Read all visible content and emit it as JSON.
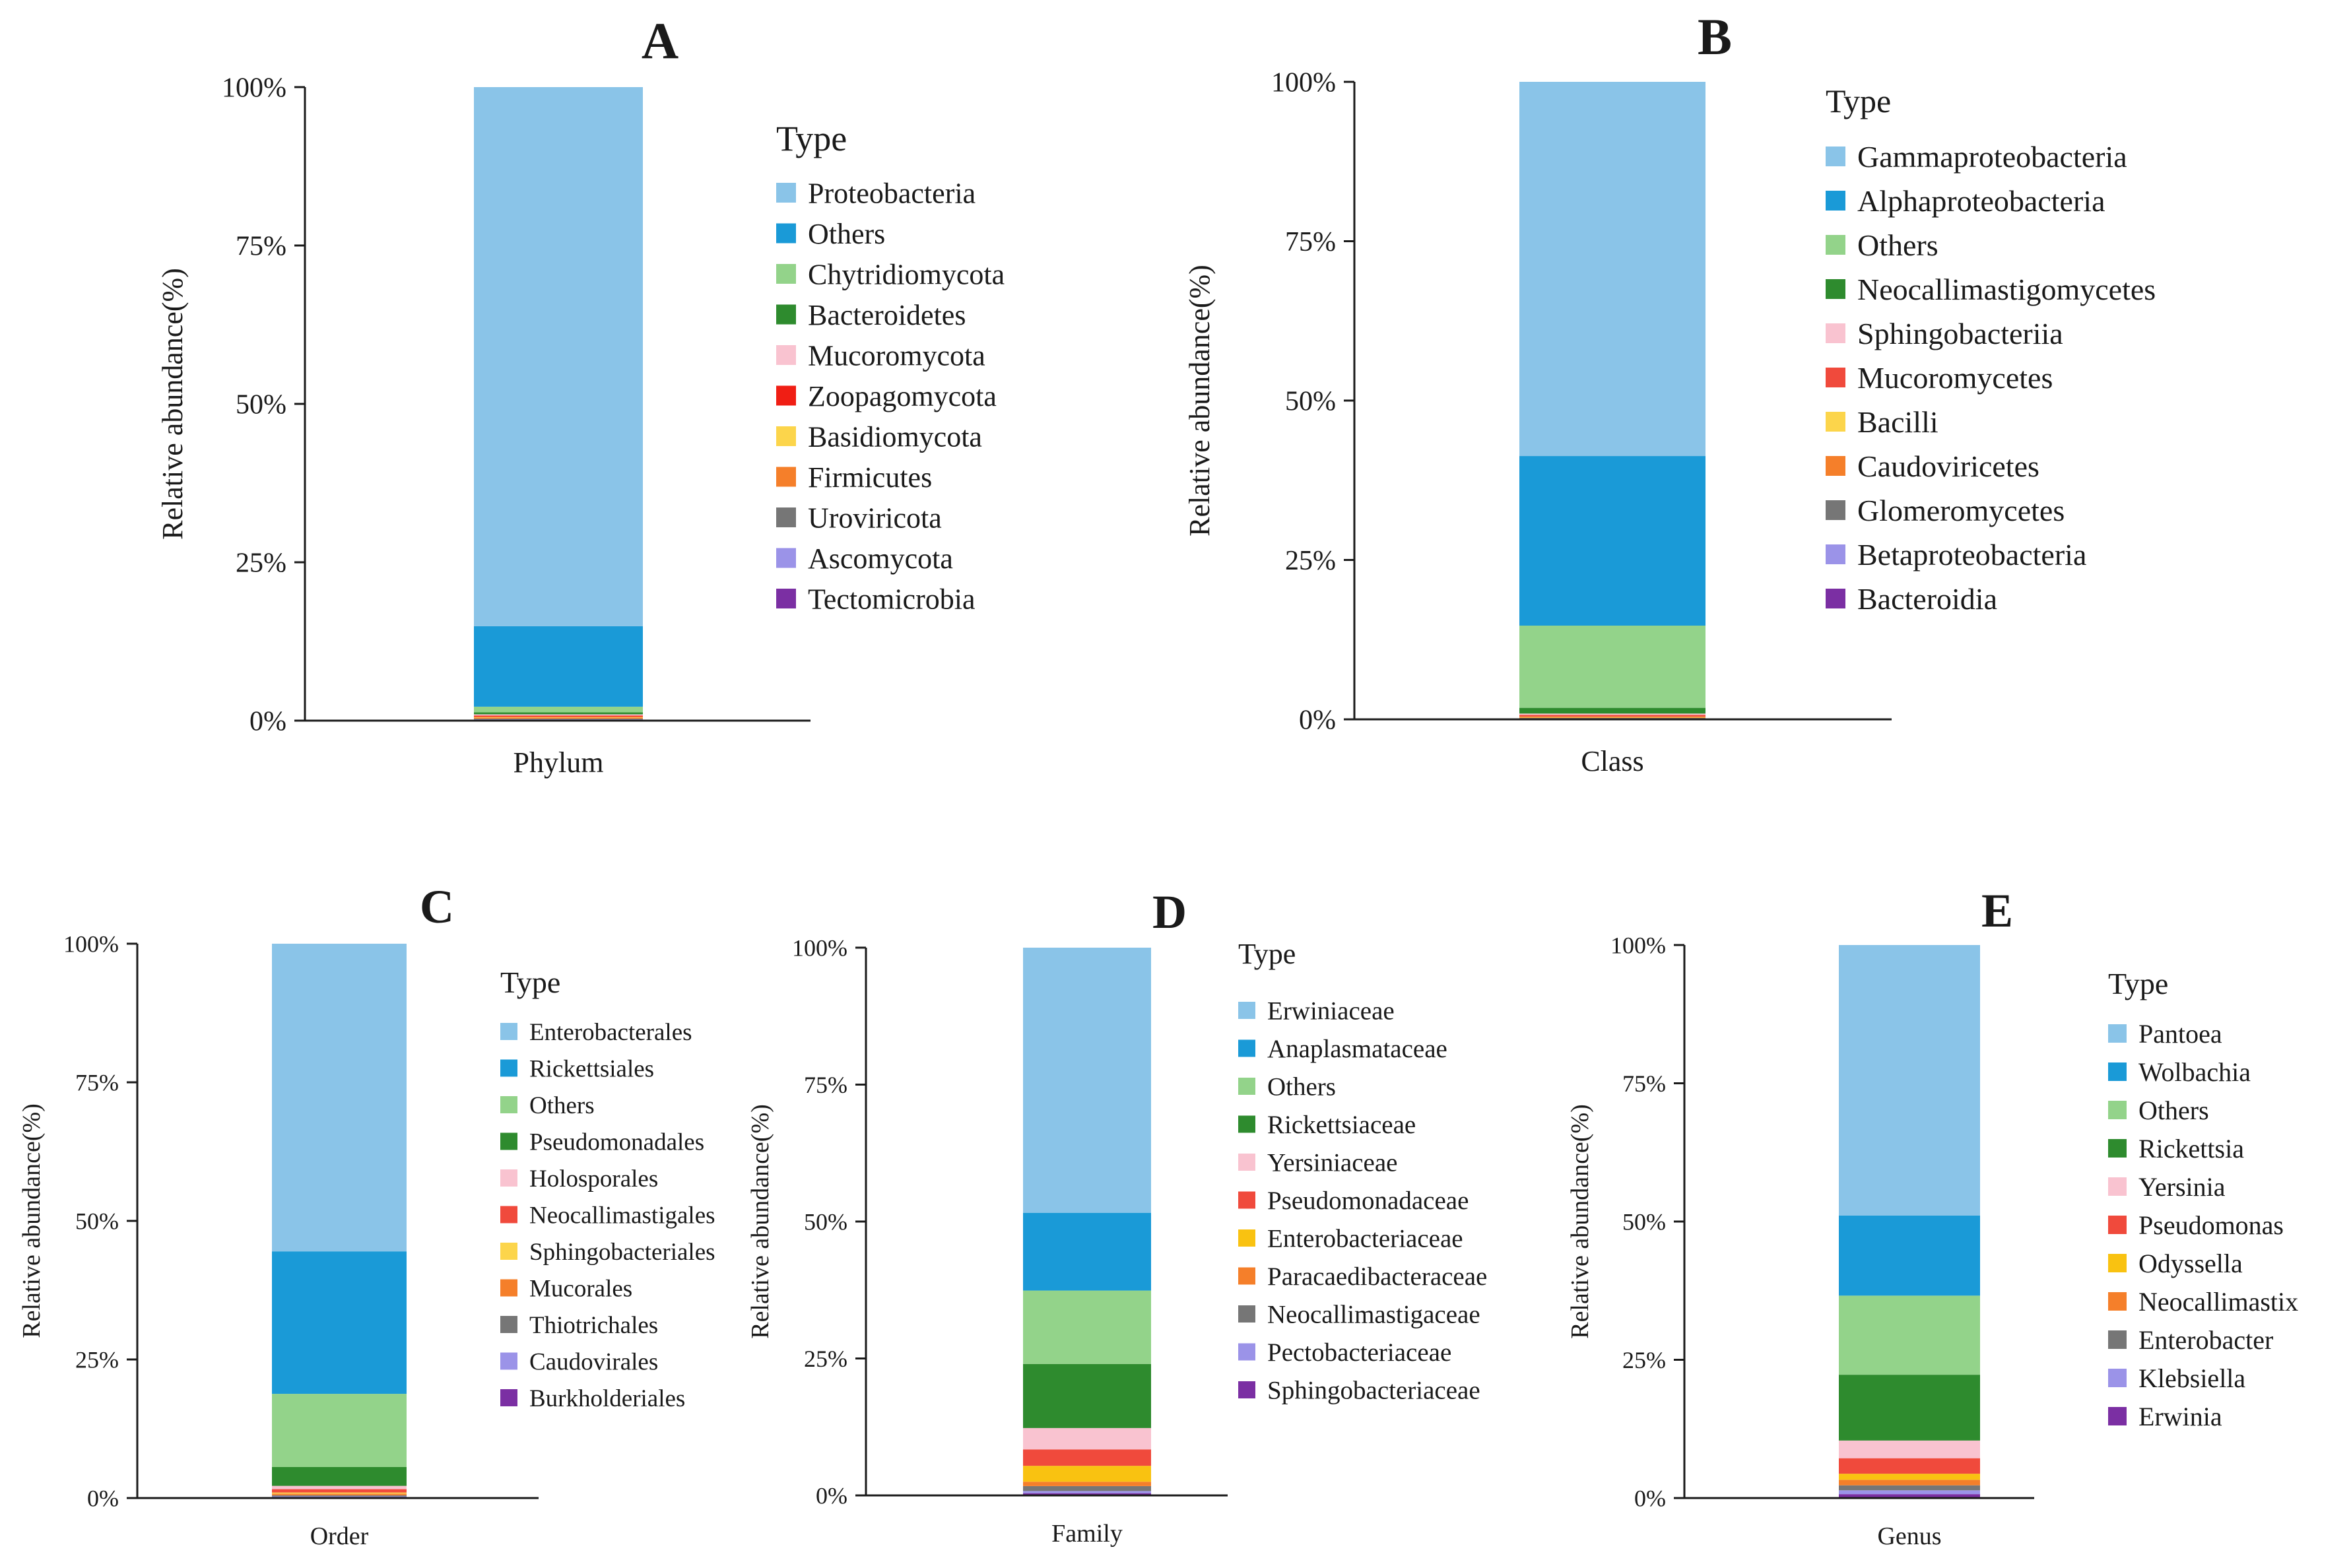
{
  "colors": {
    "light_blue": "#8ac4e8",
    "blue": "#1a9ad7",
    "light_green": "#93d38a",
    "dark_green": "#2e8b2e",
    "pink": "#f9c3d0",
    "red": "#f04a3c",
    "yellow": "#fcd54b",
    "orange": "#f57f2a",
    "gray": "#767676",
    "lavender": "#9b93e8",
    "purple": "#7b2fa3",
    "gold": "#f9c211",
    "axis": "#1a1a1a"
  },
  "chart_data": [
    {
      "type": "bar",
      "stacked": true,
      "panel": "A",
      "categories": [
        "Phylum"
      ],
      "xlabel": "Phylum",
      "ylabel": "Relative abundance(%)",
      "ylim": [
        0,
        100
      ],
      "yticks": [
        "0%",
        "25%",
        "50%",
        "75%",
        "100%"
      ],
      "legend_title": "Type",
      "series": [
        {
          "name": "Proteobacteria",
          "color": "#8ac4e8",
          "values": [
            85.1
          ]
        },
        {
          "name": "Others",
          "color": "#1a9ad7",
          "values": [
            12.7
          ]
        },
        {
          "name": "Chytridiomycota",
          "color": "#93d38a",
          "values": [
            0.9
          ]
        },
        {
          "name": "Bacteroidetes",
          "color": "#2e8b2e",
          "values": [
            0.3
          ]
        },
        {
          "name": "Mucoromycota",
          "color": "#f9c3d0",
          "values": [
            0.2
          ]
        },
        {
          "name": "Zoopagomycota",
          "color": "#f01e14",
          "values": [
            0.2
          ]
        },
        {
          "name": "Basidiomycota",
          "color": "#fcd54b",
          "values": [
            0.1
          ]
        },
        {
          "name": "Firmicutes",
          "color": "#f57f2a",
          "values": [
            0.2
          ]
        },
        {
          "name": "Uroviricota",
          "color": "#767676",
          "values": [
            0.1
          ]
        },
        {
          "name": "Ascomycota",
          "color": "#9b93e8",
          "values": [
            0.1
          ]
        },
        {
          "name": "Tectomicrobia",
          "color": "#7b2fa3",
          "values": [
            0.1
          ]
        }
      ]
    },
    {
      "type": "bar",
      "stacked": true,
      "panel": "B",
      "categories": [
        "Class"
      ],
      "xlabel": "Class",
      "ylabel": "Relative abundance(%)",
      "ylim": [
        0,
        100
      ],
      "yticks": [
        "0%",
        "25%",
        "50%",
        "75%",
        "100%"
      ],
      "legend_title": "Type",
      "series": [
        {
          "name": "Gammaproteobacteria",
          "color": "#8ac4e8",
          "values": [
            58.7
          ]
        },
        {
          "name": "Alphaproteobacteria",
          "color": "#1a9ad7",
          "values": [
            26.6
          ]
        },
        {
          "name": "Others",
          "color": "#93d38a",
          "values": [
            12.9
          ]
        },
        {
          "name": "Neocallimastigomycetes",
          "color": "#2e8b2e",
          "values": [
            0.9
          ]
        },
        {
          "name": "Sphingobacteriia",
          "color": "#f9c3d0",
          "values": [
            0.2
          ]
        },
        {
          "name": "Mucoromycetes",
          "color": "#f04a3c",
          "values": [
            0.3
          ]
        },
        {
          "name": "Bacilli",
          "color": "#fcd54b",
          "values": [
            0.1
          ]
        },
        {
          "name": "Caudoviricetes",
          "color": "#f57f2a",
          "values": [
            0.1
          ]
        },
        {
          "name": "Glomeromycetes",
          "color": "#767676",
          "values": [
            0.1
          ]
        },
        {
          "name": "Betaproteobacteria",
          "color": "#9b93e8",
          "values": [
            0.05
          ]
        },
        {
          "name": "Bacteroidia",
          "color": "#7b2fa3",
          "values": [
            0.05
          ]
        }
      ]
    },
    {
      "type": "bar",
      "stacked": true,
      "panel": "C",
      "categories": [
        "Order"
      ],
      "xlabel": "Order",
      "ylabel": "Relative abundance(%)",
      "ylim": [
        0,
        100
      ],
      "yticks": [
        "0%",
        "25%",
        "50%",
        "75%",
        "100%"
      ],
      "legend_title": "Type",
      "series": [
        {
          "name": "Enterobacterales",
          "color": "#8ac4e8",
          "values": [
            55.5
          ]
        },
        {
          "name": "Rickettsiales",
          "color": "#1a9ad7",
          "values": [
            25.7
          ]
        },
        {
          "name": "Others",
          "color": "#93d38a",
          "values": [
            13.2
          ]
        },
        {
          "name": "Pseudomonadales",
          "color": "#2e8b2e",
          "values": [
            3.4
          ]
        },
        {
          "name": "Holosporales",
          "color": "#f9c3d0",
          "values": [
            0.6
          ]
        },
        {
          "name": "Neocallimastigales",
          "color": "#f04a3c",
          "values": [
            0.6
          ]
        },
        {
          "name": "Sphingobacteriales",
          "color": "#fcd54b",
          "values": [
            0.2
          ]
        },
        {
          "name": "Mucorales",
          "color": "#f57f2a",
          "values": [
            0.3
          ]
        },
        {
          "name": "Thiotrichales",
          "color": "#767676",
          "values": [
            0.2
          ]
        },
        {
          "name": "Caudovirales",
          "color": "#9b93e8",
          "values": [
            0.2
          ]
        },
        {
          "name": "Burkholderiales",
          "color": "#7b2fa3",
          "values": [
            0.1
          ]
        }
      ]
    },
    {
      "type": "bar",
      "stacked": true,
      "panel": "D",
      "categories": [
        "Family"
      ],
      "xlabel": "Family",
      "ylabel": "Relative abundance(%)",
      "ylim": [
        0,
        100
      ],
      "yticks": [
        "0%",
        "25%",
        "50%",
        "75%",
        "100%"
      ],
      "legend_title": "Type",
      "series": [
        {
          "name": "Erwiniaceae",
          "color": "#8ac4e8",
          "values": [
            48.4
          ]
        },
        {
          "name": "Anaplasmataceae",
          "color": "#1a9ad7",
          "values": [
            14.2
          ]
        },
        {
          "name": "Others",
          "color": "#93d38a",
          "values": [
            13.4
          ]
        },
        {
          "name": "Rickettsiaceae",
          "color": "#2e8b2e",
          "values": [
            11.7
          ]
        },
        {
          "name": "Yersiniaceae",
          "color": "#f9c3d0",
          "values": [
            3.9
          ]
        },
        {
          "name": "Pseudomonadaceae",
          "color": "#f04a3c",
          "values": [
            3.0
          ]
        },
        {
          "name": "Enterobacteriaceae",
          "color": "#f9c211",
          "values": [
            2.9
          ]
        },
        {
          "name": "Paracaedibacteraceae",
          "color": "#f57f2a",
          "values": [
            0.8
          ]
        },
        {
          "name": "Neocallimastigaceae",
          "color": "#767676",
          "values": [
            0.9
          ]
        },
        {
          "name": "Pectobacteriaceae",
          "color": "#9b93e8",
          "values": [
            0.4
          ]
        },
        {
          "name": "Sphingobacteriaceae",
          "color": "#7b2fa3",
          "values": [
            0.4
          ]
        }
      ]
    },
    {
      "type": "bar",
      "stacked": true,
      "panel": "E",
      "categories": [
        "Genus"
      ],
      "xlabel": "Genus",
      "ylabel": "Relative abundance(%)",
      "ylim": [
        0,
        100
      ],
      "yticks": [
        "0%",
        "25%",
        "50%",
        "75%",
        "100%"
      ],
      "legend_title": "Type",
      "series": [
        {
          "name": "Pantoea",
          "color": "#8ac4e8",
          "values": [
            48.9
          ]
        },
        {
          "name": "Wolbachia",
          "color": "#1a9ad7",
          "values": [
            14.5
          ]
        },
        {
          "name": "Others",
          "color": "#93d38a",
          "values": [
            14.3
          ]
        },
        {
          "name": "Rickettsia",
          "color": "#2e8b2e",
          "values": [
            11.9
          ]
        },
        {
          "name": "Yersinia",
          "color": "#f9c3d0",
          "values": [
            3.2
          ]
        },
        {
          "name": "Pseudomonas",
          "color": "#f04a3c",
          "values": [
            2.8
          ]
        },
        {
          "name": "Odyssella",
          "color": "#f9c211",
          "values": [
            1.1
          ]
        },
        {
          "name": "Neocallimastix",
          "color": "#f57f2a",
          "values": [
            1.0
          ]
        },
        {
          "name": "Enterobacter",
          "color": "#767676",
          "values": [
            0.9
          ]
        },
        {
          "name": "Klebsiella",
          "color": "#9b93e8",
          "values": [
            0.7
          ]
        },
        {
          "name": "Erwinia",
          "color": "#7b2fa3",
          "values": [
            0.7
          ]
        }
      ]
    }
  ]
}
